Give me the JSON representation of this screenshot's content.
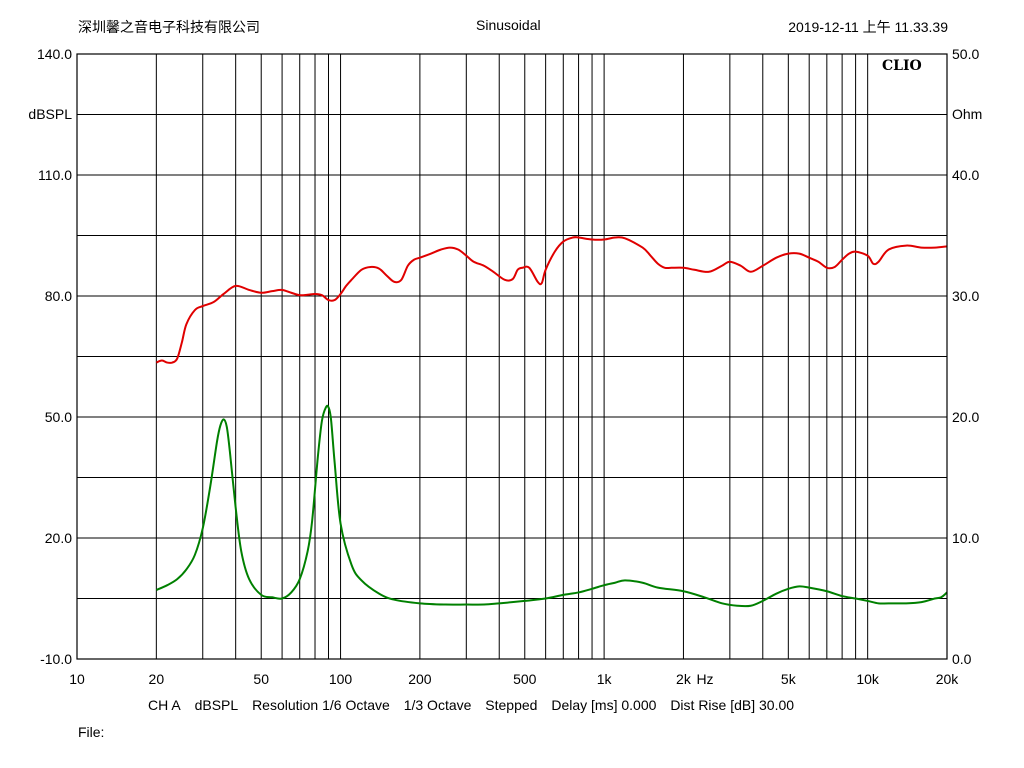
{
  "header": {
    "company": "深圳馨之音电子科技有限公司",
    "mode": "Sinusoidal",
    "timestamp": "2019-12-11 上午 11.33.39"
  },
  "footer": {
    "channel": "CH A",
    "unit": "dBSPL",
    "resolution": "Resolution 1/6 Octave",
    "smoothing": "1/3 Octave",
    "stepping": "Stepped",
    "delay": "Delay [ms] 0.000",
    "dist_rise": "Dist Rise [dB] 30.00",
    "file_label": "File:"
  },
  "chart_data": {
    "type": "line",
    "brand": "CLIO",
    "x_scale": "log",
    "xlim": [
      10,
      20000
    ],
    "x_unit_label": "Hz",
    "x_ticks": [
      {
        "v": 10,
        "label": "10"
      },
      {
        "v": 20,
        "label": "20"
      },
      {
        "v": 50,
        "label": "50"
      },
      {
        "v": 100,
        "label": "100"
      },
      {
        "v": 200,
        "label": "200"
      },
      {
        "v": 500,
        "label": "500"
      },
      {
        "v": 1000,
        "label": "1k"
      },
      {
        "v": 2000,
        "label": "2k"
      },
      {
        "v": 5000,
        "label": "5k"
      },
      {
        "v": 10000,
        "label": "10k"
      },
      {
        "v": 20000,
        "label": "20k"
      }
    ],
    "y_left": {
      "label": "dBSPL",
      "ylim": [
        -10,
        140
      ],
      "ticks": [
        {
          "v": 140,
          "label": "140.0"
        },
        {
          "v": 110,
          "label": "110.0"
        },
        {
          "v": 80,
          "label": "80.0"
        },
        {
          "v": 50,
          "label": "50.0"
        },
        {
          "v": 20,
          "label": "20.0"
        },
        {
          "v": -10,
          "label": "-10.0"
        }
      ]
    },
    "y_right": {
      "label": "Ohm",
      "ylim": [
        0,
        50
      ],
      "ticks": [
        {
          "v": 50,
          "label": "50.0"
        },
        {
          "v": 40,
          "label": "40.0"
        },
        {
          "v": 30,
          "label": "30.0"
        },
        {
          "v": 20,
          "label": "20.0"
        },
        {
          "v": 10,
          "label": "10.0"
        },
        {
          "v": 0,
          "label": "0.0"
        }
      ]
    },
    "grid": true,
    "series": [
      {
        "axis": "left",
        "color": "#e00000",
        "x": [
          20,
          21,
          22,
          23,
          24,
          25,
          26,
          28,
          30,
          33,
          36,
          40,
          45,
          50,
          55,
          60,
          65,
          70,
          75,
          80,
          85,
          90,
          95,
          100,
          105,
          110,
          120,
          130,
          140,
          150,
          160,
          170,
          180,
          190,
          200,
          220,
          240,
          260,
          280,
          300,
          320,
          350,
          380,
          420,
          450,
          470,
          490,
          520,
          560,
          580,
          600,
          650,
          700,
          760,
          800,
          900,
          1000,
          1100,
          1200,
          1400,
          1500,
          1600,
          1700,
          1800,
          2000,
          2200,
          2500,
          2800,
          3000,
          3300,
          3600,
          4000,
          4500,
          5000,
          5500,
          6000,
          6500,
          7000,
          7500,
          8000,
          8500,
          9000,
          10000,
          10500,
          11000,
          12000,
          14000,
          16000,
          18000,
          20000
        ],
        "values": [
          63.5,
          64,
          63.5,
          63.5,
          64.5,
          68.5,
          73,
          76.5,
          77.5,
          78.5,
          80.5,
          82.5,
          81.5,
          80.8,
          81.2,
          81.5,
          80.8,
          80.2,
          80.3,
          80.5,
          80.2,
          79,
          79,
          80.5,
          82.5,
          84,
          86.5,
          87.2,
          86.8,
          85,
          83.5,
          84,
          87.5,
          89,
          89.5,
          90.5,
          91.5,
          92,
          91.5,
          90,
          88.5,
          87.5,
          86,
          84,
          84.2,
          86.5,
          87,
          87,
          83.5,
          83.2,
          86.5,
          91,
          93.5,
          94.5,
          94.5,
          94,
          94,
          94.5,
          94.3,
          92,
          90,
          88,
          87,
          87,
          87,
          86.5,
          86,
          87.5,
          88.5,
          87.5,
          86,
          87.5,
          89.5,
          90.5,
          90.5,
          89.5,
          88.5,
          87,
          87.2,
          89,
          90.5,
          91,
          90,
          88,
          88.5,
          91.5,
          92.5,
          92,
          92,
          92.3
        ]
      },
      {
        "axis": "right",
        "color": "#008000",
        "x": [
          20,
          22,
          24,
          26,
          28,
          30,
          32,
          34,
          35,
          36,
          37,
          38,
          40,
          42,
          45,
          50,
          55,
          60,
          65,
          70,
          75,
          78,
          82,
          85,
          88,
          90,
          92,
          95,
          100,
          110,
          120,
          140,
          160,
          200,
          250,
          300,
          350,
          400,
          500,
          600,
          700,
          800,
          900,
          1000,
          1100,
          1200,
          1400,
          1600,
          2000,
          2400,
          2800,
          3200,
          3600,
          4000,
          4500,
          5000,
          5500,
          6000,
          7000,
          8000,
          9000,
          10000,
          11000,
          12000,
          14000,
          16000,
          18000,
          19000,
          20000
        ],
        "values": [
          5.7,
          6.1,
          6.6,
          7.4,
          8.6,
          10.8,
          14.2,
          18,
          19.3,
          19.8,
          19.2,
          17.2,
          12.5,
          8.9,
          6.6,
          5.3,
          5.1,
          5.0,
          5.5,
          6.6,
          8.9,
          11.4,
          16.7,
          19.7,
          20.8,
          20.8,
          19.8,
          16.2,
          11.2,
          7.8,
          6.5,
          5.4,
          4.9,
          4.6,
          4.5,
          4.5,
          4.5,
          4.6,
          4.8,
          5.0,
          5.3,
          5.5,
          5.8,
          6.1,
          6.3,
          6.5,
          6.3,
          5.9,
          5.6,
          5.1,
          4.6,
          4.4,
          4.4,
          4.8,
          5.4,
          5.8,
          6.0,
          5.9,
          5.6,
          5.2,
          5.0,
          4.8,
          4.6,
          4.6,
          4.6,
          4.7,
          5.0,
          5.1,
          5.5
        ]
      }
    ]
  }
}
